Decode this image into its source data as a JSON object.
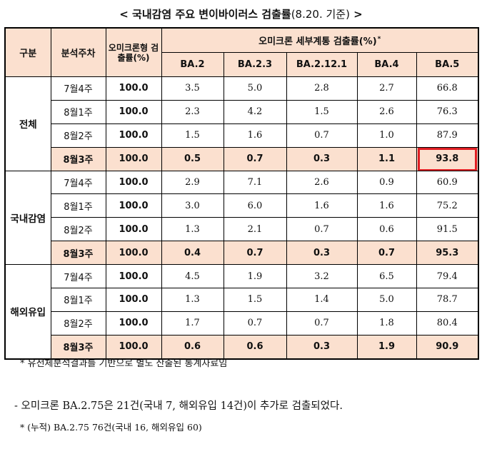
{
  "title": {
    "prefix": "< 국내감염 주요 변이바이러스 검출률",
    "date": "(8.20. 기준)",
    "suffix": " >"
  },
  "table": {
    "headers": {
      "group": "구분",
      "week": "분석주차",
      "omicron_rate": "오미크론형 검출률(%)",
      "subtype_group": "오미크론 세부계통 검출률(%)",
      "subtype_marker": "*",
      "subtypes": [
        "BA.2",
        "BA.2.3",
        "BA.2.12.1",
        "BA.4",
        "BA.5"
      ]
    },
    "groups": [
      {
        "name": "전체",
        "rows": [
          {
            "week": "7월4주",
            "total": "100.0",
            "values": [
              "3.5",
              "5.0",
              "2.8",
              "2.7",
              "66.8"
            ]
          },
          {
            "week": "8월1주",
            "total": "100.0",
            "values": [
              "2.3",
              "4.2",
              "1.5",
              "2.6",
              "76.3"
            ]
          },
          {
            "week": "8월2주",
            "total": "100.0",
            "values": [
              "1.5",
              "1.6",
              "0.7",
              "1.0",
              "87.9"
            ]
          },
          {
            "week": "8월3주",
            "total": "100.0",
            "values": [
              "0.5",
              "0.7",
              "0.3",
              "1.1",
              "93.8"
            ]
          }
        ]
      },
      {
        "name": "국내감염",
        "rows": [
          {
            "week": "7월4주",
            "total": "100.0",
            "values": [
              "2.9",
              "7.1",
              "2.6",
              "0.9",
              "60.9"
            ]
          },
          {
            "week": "8월1주",
            "total": "100.0",
            "values": [
              "3.0",
              "6.0",
              "1.6",
              "1.6",
              "75.2"
            ]
          },
          {
            "week": "8월2주",
            "total": "100.0",
            "values": [
              "1.3",
              "2.1",
              "0.7",
              "0.6",
              "91.5"
            ]
          },
          {
            "week": "8월3주",
            "total": "100.0",
            "values": [
              "0.4",
              "0.7",
              "0.3",
              "0.7",
              "95.3"
            ]
          }
        ]
      },
      {
        "name": "해외유입",
        "rows": [
          {
            "week": "7월4주",
            "total": "100.0",
            "values": [
              "4.5",
              "1.9",
              "3.2",
              "6.5",
              "79.4"
            ]
          },
          {
            "week": "8월1주",
            "total": "100.0",
            "values": [
              "1.3",
              "1.5",
              "1.4",
              "5.0",
              "78.7"
            ]
          },
          {
            "week": "8월2주",
            "total": "100.0",
            "values": [
              "1.7",
              "0.7",
              "0.7",
              "1.8",
              "80.4"
            ]
          },
          {
            "week": "8월3주",
            "total": "100.0",
            "values": [
              "0.6",
              "0.6",
              "0.3",
              "1.9",
              "90.9"
            ]
          }
        ]
      }
    ],
    "highlight_color": "#fbe0cf",
    "box_color": "#e01e23"
  },
  "footnote_table": "* 유전체분석결과를 기반으로 별도 산출된 통계자료임",
  "note": "- 오미크론 BA.2.75은 21건(국내 7, 해외유입 14건)이 추가로 검출되었다.",
  "footnote_note": "* (누적) BA.2.75 76건(국내 16, 해외유입 60)"
}
